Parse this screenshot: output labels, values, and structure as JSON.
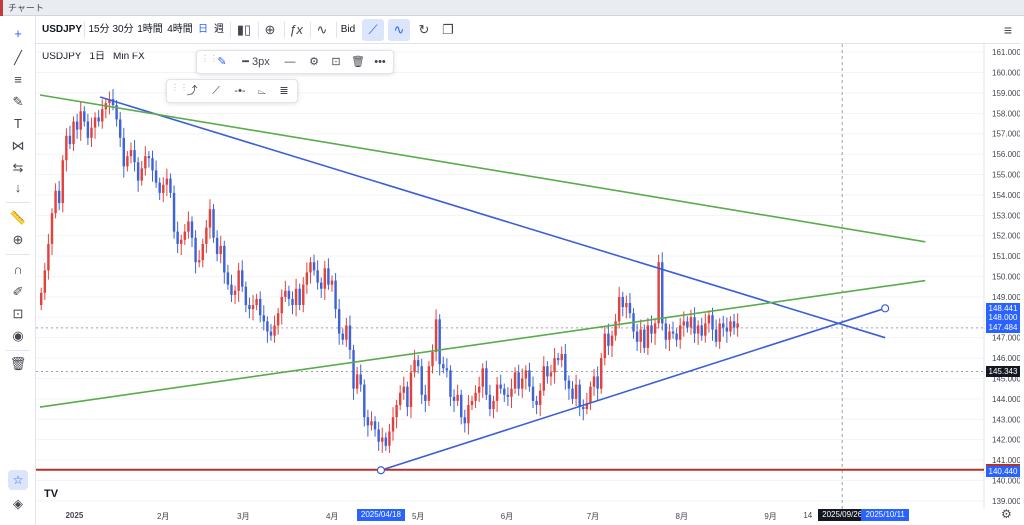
{
  "window": {
    "title": "チャート"
  },
  "toolbar": {
    "symbol": "USDJPY",
    "intervals": [
      "15分",
      "30分",
      "1時間",
      "4時間",
      "日",
      "週"
    ],
    "active_interval": "日",
    "bid_label": "Bid"
  },
  "legend": {
    "symbol": "USDJPY",
    "interval": "1日",
    "source": "Min FX"
  },
  "drawing_toolbar": {
    "width_label": "3px"
  },
  "colors": {
    "up": "#e0433e",
    "down": "#3f63d6",
    "trend_blue": "#3c5fd8",
    "trend_green": "#5aab4a",
    "support_red": "#b7312c",
    "accent": "#2962ff"
  },
  "chart_data": {
    "type": "candlestick",
    "symbol": "USDJPY",
    "interval": "1日",
    "ylim": [
      138.6,
      161.4
    ],
    "y_ticks": [
      139,
      140,
      141,
      142,
      143,
      144,
      145,
      146,
      147,
      148,
      149,
      150,
      151,
      152,
      153,
      154,
      155,
      156,
      157,
      158,
      159,
      160,
      161
    ],
    "x_ticks": [
      "2025",
      "2月",
      "3月",
      "4月",
      "5月",
      "6月",
      "7月",
      "8月",
      "9月",
      "14",
      "2025/09/26",
      "2025/10/11"
    ],
    "x_highlight": "2025/04/18",
    "close_series": [
      149.2,
      150.3,
      151.6,
      153.1,
      154.2,
      153.6,
      155.7,
      156.9,
      156.5,
      157.6,
      157.2,
      158.1,
      157.6,
      156.8,
      157.3,
      157.8,
      157.6,
      158.2,
      158.5,
      158.7,
      158.4,
      157.7,
      156.8,
      155.4,
      155.9,
      156.2,
      155.6,
      154.7,
      155.3,
      155.9,
      155.8,
      155.2,
      154.6,
      154.1,
      154.5,
      154.8,
      154.1,
      152.2,
      151.6,
      151.8,
      152.2,
      152.7,
      151.9,
      150.7,
      150.8,
      151.6,
      152.4,
      153.3,
      151.9,
      151.1,
      151.5,
      150.2,
      149.6,
      149.1,
      149.3,
      150.3,
      149.5,
      148.6,
      148.4,
      148.6,
      148.9,
      148.1,
      147.8,
      147.3,
      147.1,
      147.6,
      148.2,
      149.0,
      149.3,
      148.9,
      148.6,
      149.4,
      148.6,
      149.6,
      150.2,
      150.7,
      150.3,
      149.7,
      149.4,
      150.4,
      149.6,
      149.8,
      148.4,
      147.2,
      146.9,
      147.6,
      146.4,
      144.5,
      145.2,
      144.7,
      143.1,
      142.7,
      142.9,
      142.5,
      141.9,
      142.1,
      141.7,
      142.4,
      143.1,
      143.7,
      144.3,
      144.6,
      143.6,
      145.3,
      145.9,
      145.6,
      144.2,
      143.9,
      145.6,
      146.3,
      147.9,
      145.7,
      145.5,
      145.4,
      144.1,
      143.9,
      144.2,
      143.1,
      142.8,
      143.7,
      143.9,
      144.3,
      144.6,
      145.5,
      144.2,
      143.5,
      143.9,
      144.7,
      144.5,
      144.2,
      144.1,
      144.5,
      145.3,
      144.5,
      145.0,
      145.4,
      144.6,
      143.9,
      143.7,
      144.4,
      145.6,
      145.1,
      145.3,
      146.0,
      145.9,
      146.2,
      144.9,
      144.5,
      144.0,
      144.7,
      143.6,
      143.5,
      143.8,
      144.6,
      145.1,
      144.5,
      146.0,
      147.2,
      146.6,
      147.1,
      147.8,
      149.0,
      148.5,
      148.7,
      148.2,
      147.3,
      146.8,
      147.4,
      146.5,
      147.6,
      147.2,
      147.7,
      150.7,
      147.7,
      146.9,
      147.3,
      147.2,
      146.9,
      147.6,
      147.8,
      147.5,
      148.0,
      147.2,
      147.6,
      147.1,
      147.7,
      148.1,
      147.4,
      146.8,
      147.7,
      147.5,
      147.3,
      147.8,
      147.5,
      147.7
    ],
    "trendlines": [
      {
        "color": "blue",
        "from": [
          "2025-01-10",
          158.8
        ],
        "to": [
          "2025-10-11",
          147.0
        ]
      },
      {
        "color": "blue",
        "from": [
          "2025-04-18",
          140.5
        ],
        "to": [
          "2025-10-11",
          148.44
        ]
      },
      {
        "color": "green",
        "from": [
          "2024-12-20",
          158.9
        ],
        "to": [
          "2025-10-25",
          151.7
        ]
      },
      {
        "color": "green",
        "from": [
          "2024-12-20",
          143.6
        ],
        "to": [
          "2025-10-25",
          149.8
        ]
      },
      {
        "color": "red",
        "horizontal": 140.522
      }
    ],
    "price_labels": [
      {
        "text": "148.441",
        "color": "#2962ff"
      },
      {
        "text": "148.000",
        "color": "#2962ff"
      },
      {
        "text": "147.484",
        "color": "#2962ff"
      },
      {
        "text": "145.343",
        "color": "#131722"
      },
      {
        "text": "140.522",
        "color": "#b7312c"
      },
      {
        "text": "140.440",
        "color": "#2962ff"
      }
    ],
    "reference_lines": [
      {
        "horizontal": 147.484
      },
      {
        "horizontal": 145.343
      }
    ],
    "grid": true,
    "legend_position": "top-left"
  }
}
